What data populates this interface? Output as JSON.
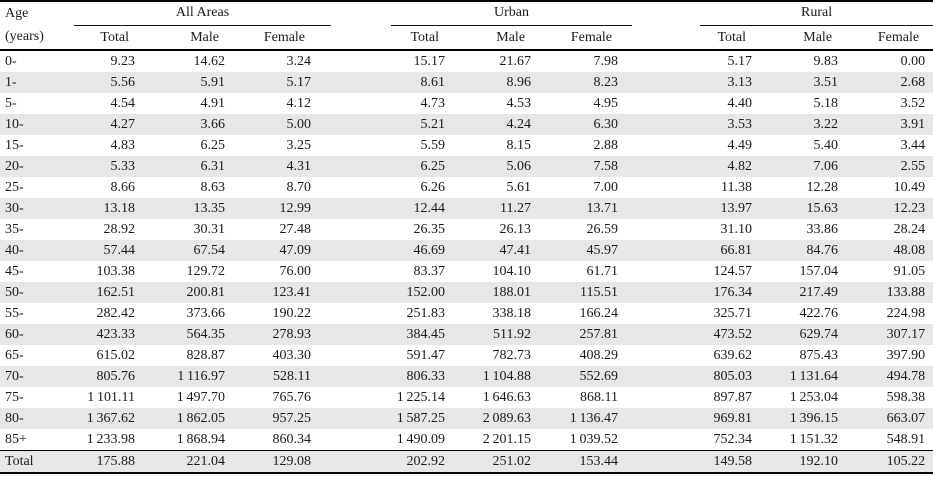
{
  "table": {
    "row_header": {
      "line1": "Age",
      "line2": "(years)"
    },
    "groups": [
      {
        "label": "All Areas",
        "columns": [
          "Total",
          "Male",
          "Female"
        ]
      },
      {
        "label": "Urban",
        "columns": [
          "Total",
          "Male",
          "Female"
        ]
      },
      {
        "label": "Rural",
        "columns": [
          "Total",
          "Male",
          "Female"
        ]
      }
    ],
    "rows": [
      {
        "age": "0-",
        "values": [
          "9.23",
          "14.62",
          "3.24",
          "15.17",
          "21.67",
          "7.98",
          "5.17",
          "9.83",
          "0.00"
        ]
      },
      {
        "age": "1-",
        "values": [
          "5.56",
          "5.91",
          "5.17",
          "8.61",
          "8.96",
          "8.23",
          "3.13",
          "3.51",
          "2.68"
        ]
      },
      {
        "age": "5-",
        "values": [
          "4.54",
          "4.91",
          "4.12",
          "4.73",
          "4.53",
          "4.95",
          "4.40",
          "5.18",
          "3.52"
        ]
      },
      {
        "age": "10-",
        "values": [
          "4.27",
          "3.66",
          "5.00",
          "5.21",
          "4.24",
          "6.30",
          "3.53",
          "3.22",
          "3.91"
        ]
      },
      {
        "age": "15-",
        "values": [
          "4.83",
          "6.25",
          "3.25",
          "5.59",
          "8.15",
          "2.88",
          "4.49",
          "5.40",
          "3.44"
        ]
      },
      {
        "age": "20-",
        "values": [
          "5.33",
          "6.31",
          "4.31",
          "6.25",
          "5.06",
          "7.58",
          "4.82",
          "7.06",
          "2.55"
        ]
      },
      {
        "age": "25-",
        "values": [
          "8.66",
          "8.63",
          "8.70",
          "6.26",
          "5.61",
          "7.00",
          "11.38",
          "12.28",
          "10.49"
        ]
      },
      {
        "age": "30-",
        "values": [
          "13.18",
          "13.35",
          "12.99",
          "12.44",
          "11.27",
          "13.71",
          "13.97",
          "15.63",
          "12.23"
        ]
      },
      {
        "age": "35-",
        "values": [
          "28.92",
          "30.31",
          "27.48",
          "26.35",
          "26.13",
          "26.59",
          "31.10",
          "33.86",
          "28.24"
        ]
      },
      {
        "age": "40-",
        "values": [
          "57.44",
          "67.54",
          "47.09",
          "46.69",
          "47.41",
          "45.97",
          "66.81",
          "84.76",
          "48.08"
        ]
      },
      {
        "age": "45-",
        "values": [
          "103.38",
          "129.72",
          "76.00",
          "83.37",
          "104.10",
          "61.71",
          "124.57",
          "157.04",
          "91.05"
        ]
      },
      {
        "age": "50-",
        "values": [
          "162.51",
          "200.81",
          "123.41",
          "152.00",
          "188.01",
          "115.51",
          "176.34",
          "217.49",
          "133.88"
        ]
      },
      {
        "age": "55-",
        "values": [
          "282.42",
          "373.66",
          "190.22",
          "251.83",
          "338.18",
          "166.24",
          "325.71",
          "422.76",
          "224.98"
        ]
      },
      {
        "age": "60-",
        "values": [
          "423.33",
          "564.35",
          "278.93",
          "384.45",
          "511.92",
          "257.81",
          "473.52",
          "629.74",
          "307.17"
        ]
      },
      {
        "age": "65-",
        "values": [
          "615.02",
          "828.87",
          "403.30",
          "591.47",
          "782.73",
          "408.29",
          "639.62",
          "875.43",
          "397.90"
        ]
      },
      {
        "age": "70-",
        "values": [
          "805.76",
          "1 116.97",
          "528.11",
          "806.33",
          "1 104.88",
          "552.69",
          "805.03",
          "1 131.64",
          "494.78"
        ]
      },
      {
        "age": "75-",
        "values": [
          "1 101.11",
          "1 497.70",
          "765.76",
          "1 225.14",
          "1 646.63",
          "868.11",
          "897.87",
          "1 253.04",
          "598.38"
        ]
      },
      {
        "age": "80-",
        "values": [
          "1 367.62",
          "1 862.05",
          "957.25",
          "1 587.25",
          "2 089.63",
          "1 136.47",
          "969.81",
          "1 396.15",
          "663.07"
        ]
      },
      {
        "age": "85+",
        "values": [
          "1 233.98",
          "1 868.94",
          "860.34",
          "1 490.09",
          "2 201.15",
          "1 039.52",
          "752.34",
          "1 151.32",
          "548.91"
        ]
      },
      {
        "age": "Total",
        "values": [
          "175.88",
          "221.04",
          "129.08",
          "202.92",
          "251.02",
          "153.44",
          "149.58",
          "192.10",
          "105.22"
        ]
      }
    ]
  },
  "colors": {
    "stripe": "#e7e7e7",
    "rule": "#000000",
    "text": "#1b1b1b",
    "background": "#ffffff"
  }
}
